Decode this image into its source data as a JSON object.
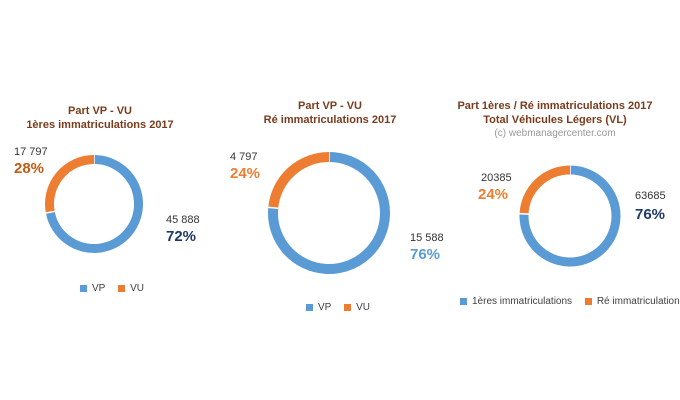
{
  "colors": {
    "vp": "#5b9bd5",
    "vu": "#ed7d31",
    "dark_navy": "#1f3864",
    "dark_orange": "#c55a11"
  },
  "chart_data": [
    {
      "type": "pie",
      "donut": true,
      "title": "Part VP - VU",
      "subtitle": "1ères immatriculations  2017",
      "slices": [
        {
          "name": "VP",
          "value": 45888,
          "value_label": "45 888",
          "percent_label": "72%"
        },
        {
          "name": "VU",
          "value": 17797,
          "value_label": "17 797",
          "percent_label": "28%"
        }
      ],
      "legend": [
        "VP",
        "VU"
      ],
      "legend_position": "bottom"
    },
    {
      "type": "pie",
      "donut": true,
      "title": "Part VP - VU",
      "subtitle": "Ré immatriculations  2017",
      "slices": [
        {
          "name": "VP",
          "value": 15588,
          "value_label": "15 588",
          "percent_label": "76%"
        },
        {
          "name": "VU",
          "value": 4797,
          "value_label": "4 797",
          "percent_label": "24%"
        }
      ],
      "legend": [
        "VP",
        "VU"
      ],
      "legend_position": "bottom"
    },
    {
      "type": "pie",
      "donut": true,
      "title": "Part 1ères / Ré immatriculations  2017",
      "subtitle": "Total Véhicules Légers (VL)",
      "watermark": "(c) webmanagercenter.com",
      "slices": [
        {
          "name": "1ères immatriculations",
          "value": 63685,
          "value_label": "63685",
          "percent_label": "76%"
        },
        {
          "name": "Ré immatriculation",
          "value": 20385,
          "value_label": "20385",
          "percent_label": "24%"
        }
      ],
      "legend": [
        "1ères immatriculations",
        "Ré immatriculation"
      ],
      "legend_position": "bottom"
    }
  ]
}
